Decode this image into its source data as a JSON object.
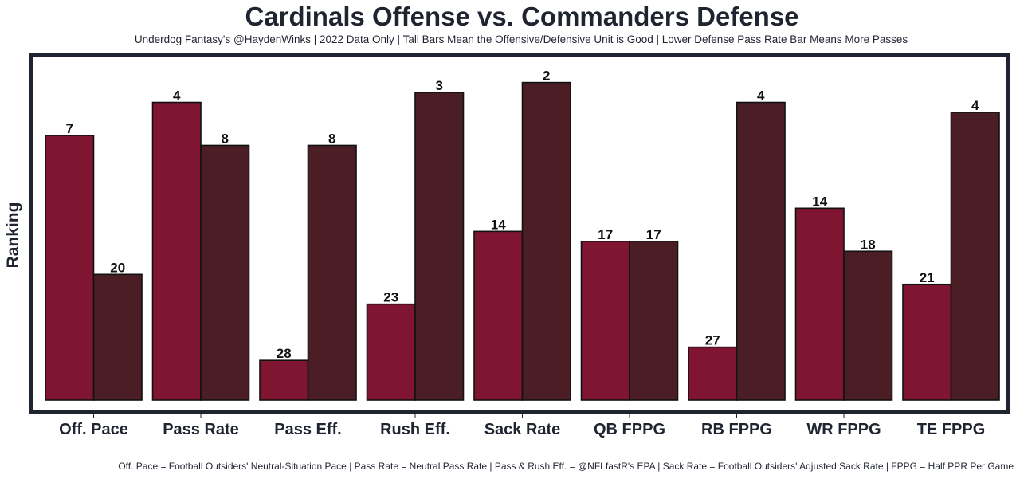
{
  "chart_data": {
    "type": "bar",
    "title": "Cardinals Offense vs. Commanders Defense",
    "subtitle": "Underdog Fantasy's @HaydenWinks | 2022 Data Only | Tall Bars Mean the Offensive/Defensive Unit is Good | Lower Defense Pass Rate Bar Means More Passes",
    "xlabel": "",
    "ylabel": "Ranking",
    "footnote": "Off. Pace = Football Outsiders' Neutral-Situation Pace | Pass Rate = Neutral Pass Rate | Pass & Rush Eff. = @NFLfastR's EPA | Sack Rate = Football Outsiders' Adjusted Sack Rate | FPPG = Half PPR Per Game",
    "categories": [
      "Off. Pace",
      "Pass Rate",
      "Pass Eff.",
      "Rush Eff.",
      "Sack Rate",
      "QB FPPG",
      "RB FPPG",
      "WR FPPG",
      "TE FPPG"
    ],
    "series": [
      {
        "name": "Cardinals Offense",
        "color": "#7f1530",
        "rank_labels": [
          7,
          4,
          28,
          23,
          14,
          17,
          27,
          14,
          21
        ],
        "values": [
          80,
          90,
          12,
          29,
          51,
          48,
          16,
          58,
          35
        ]
      },
      {
        "name": "Commanders Defense",
        "color": "#4a1e24",
        "rank_labels": [
          20,
          8,
          8,
          3,
          2,
          17,
          4,
          18,
          4
        ],
        "values": [
          38,
          77,
          77,
          93,
          96,
          48,
          90,
          45,
          87
        ]
      }
    ],
    "ylim": [
      0,
      100
    ],
    "grid": false,
    "legend": "none",
    "frame_color": "#1f2430"
  }
}
